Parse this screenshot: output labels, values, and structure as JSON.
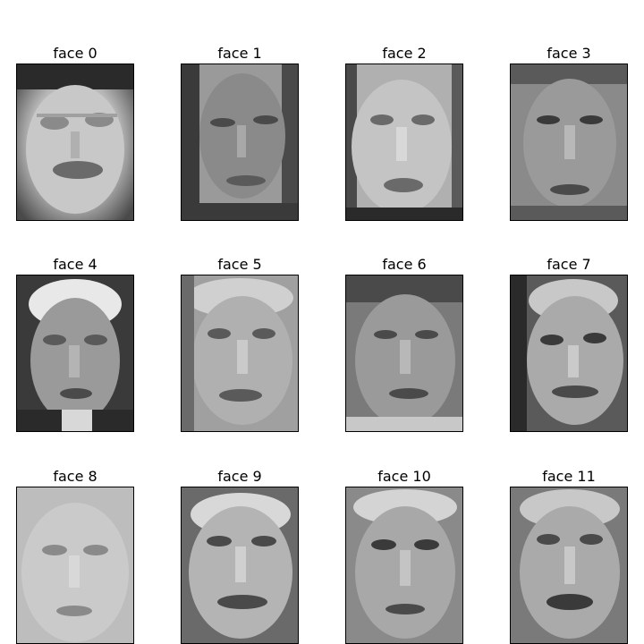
{
  "faces": [
    {
      "title": "face 0"
    },
    {
      "title": "face 1"
    },
    {
      "title": "face 2"
    },
    {
      "title": "face 3"
    },
    {
      "title": "face 4"
    },
    {
      "title": "face 5"
    },
    {
      "title": "face 6"
    },
    {
      "title": "face 7"
    },
    {
      "title": "face 8"
    },
    {
      "title": "face 9"
    },
    {
      "title": "face 10"
    },
    {
      "title": "face 11"
    }
  ]
}
